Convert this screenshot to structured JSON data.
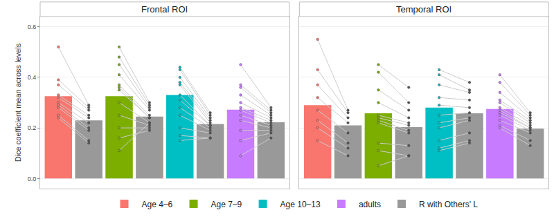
{
  "chart_data": [
    {
      "type": "bar",
      "title": "Frontal ROI",
      "ylabel": "Dice coefficient mean across levels",
      "categories": [
        "Age 4–6",
        "Age 7–9",
        "Age 10–13",
        "adults"
      ],
      "series": [
        {
          "colors": [
            "#F8766D",
            "#7CAE00",
            "#00BFC4",
            "#C77CFF"
          ],
          "values": [
            0.325,
            0.325,
            0.33,
            0.272
          ],
          "points": [
            [
              0.52,
              0.39,
              0.37,
              0.33,
              0.32,
              0.3,
              0.29,
              0.28,
              0.25,
              0.24
            ],
            [
              0.52,
              0.48,
              0.45,
              0.41,
              0.37,
              0.36,
              0.35,
              0.3,
              0.25,
              0.2,
              0.16,
              0.11
            ],
            [
              0.44,
              0.43,
              0.4,
              0.38,
              0.37,
              0.33,
              0.31,
              0.28,
              0.25,
              0.2,
              0.17,
              0.15
            ],
            [
              0.45,
              0.37,
              0.36,
              0.33,
              0.3,
              0.28,
              0.27,
              0.25,
              0.23,
              0.19,
              0.15,
              0.09
            ]
          ]
        },
        {
          "name": "R with Others' L",
          "color": "#999999",
          "values": [
            0.23,
            0.245,
            0.215,
            0.222
          ],
          "points": [
            [
              0.29,
              0.28,
              0.27,
              0.25,
              0.24,
              0.22,
              0.2,
              0.19,
              0.15,
              0.14
            ],
            [
              0.3,
              0.29,
              0.28,
              0.27,
              0.25,
              0.24,
              0.24,
              0.22,
              0.21,
              0.2,
              0.19,
              0.22
            ],
            [
              0.26,
              0.25,
              0.24,
              0.23,
              0.22,
              0.21,
              0.21,
              0.2,
              0.19,
              0.18,
              0.16,
              0.16
            ],
            [
              0.28,
              0.27,
              0.26,
              0.25,
              0.24,
              0.23,
              0.22,
              0.21,
              0.2,
              0.19,
              0.18,
              0.16
            ]
          ]
        }
      ],
      "ylim": [
        -0.04,
        0.64
      ],
      "yticks": [
        {
          "value": 0,
          "label": "0.0"
        },
        0.2,
        0.4,
        0.6
      ],
      "grid": true,
      "tick_labels": "y",
      "legend": "bottom"
    },
    {
      "type": "bar",
      "title": "Temporal ROI",
      "categories": [
        "Age 4–6",
        "Age 7–9",
        "Age 10–13",
        "adults"
      ],
      "series": [
        {
          "colors": [
            "#F8766D",
            "#7CAE00",
            "#00BFC4",
            "#C77CFF"
          ],
          "values": [
            0.29,
            0.258,
            0.28,
            0.275
          ],
          "points": [
            [
              0.55,
              0.43,
              0.37,
              0.32,
              0.27,
              0.23,
              0.2,
              0.15
            ],
            [
              0.45,
              0.42,
              0.35,
              0.3,
              0.25,
              0.24,
              0.23,
              0.22,
              0.14,
              0.11,
              0.05
            ],
            [
              0.43,
              0.41,
              0.37,
              0.32,
              0.29,
              0.25,
              0.22,
              0.2,
              0.15,
              0.12,
              0.11
            ],
            [
              0.41,
              0.38,
              0.34,
              0.31,
              0.3,
              0.28,
              0.27,
              0.26,
              0.25,
              0.23,
              0.21,
              0.2
            ]
          ]
        },
        {
          "name": "R with Others' L",
          "color": "#999999",
          "values": [
            0.21,
            0.203,
            0.258,
            0.197
          ],
          "points": [
            [
              0.27,
              0.26,
              0.24,
              0.22,
              0.18,
              0.14,
              0.12,
              0.09
            ],
            [
              0.36,
              0.3,
              0.27,
              0.24,
              0.22,
              0.21,
              0.19,
              0.18,
              0.13,
              0.09,
              0.09
            ],
            [
              0.38,
              0.35,
              0.34,
              0.31,
              0.28,
              0.26,
              0.24,
              0.23,
              0.18,
              0.15,
              0.14
            ],
            [
              0.26,
              0.25,
              0.24,
              0.23,
              0.22,
              0.21,
              0.2,
              0.2,
              0.19,
              0.18,
              0.15,
              0.13
            ]
          ]
        }
      ],
      "ylim": [
        -0.04,
        0.64
      ],
      "yticks": [
        {
          "value": 0,
          "label": "0.0"
        },
        0.2,
        0.4,
        0.6
      ],
      "grid": true,
      "tick_labels": false
    }
  ]
}
